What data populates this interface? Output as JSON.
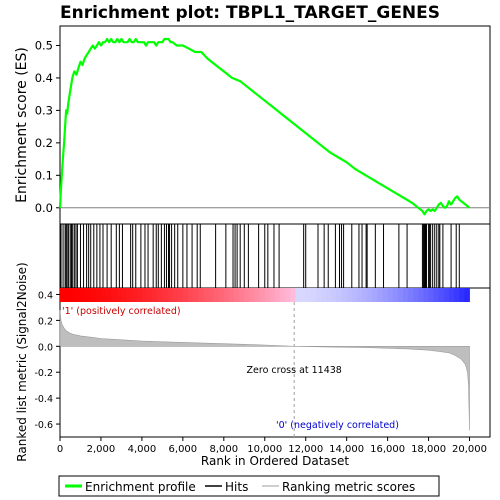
{
  "chart_data": {
    "type": "line",
    "title": "Enrichment plot: TBPL1_TARGET_GENES",
    "xlabel": "Rank in Ordered Dataset",
    "ylabel_top": "Enrichment score (ES)",
    "ylabel_bottom": "Ranked list metric (Signal2Noise)",
    "xlim": [
      0,
      21000
    ],
    "x_ticks": [
      0,
      2000,
      4000,
      6000,
      8000,
      10000,
      12000,
      14000,
      16000,
      18000,
      20000
    ],
    "x_tick_labels": [
      "0",
      "2,000",
      "4,000",
      "6,000",
      "8,000",
      "10,000",
      "12,000",
      "14,000",
      "16,000",
      "18,000",
      "20,000"
    ],
    "es_panel": {
      "ylim": [
        -0.05,
        0.56
      ],
      "y_ticks": [
        0.0,
        0.1,
        0.2,
        0.3,
        0.4,
        0.5
      ],
      "y_tick_labels": [
        "0.0",
        "0.1",
        "0.2",
        "0.3",
        "0.4",
        "0.5"
      ],
      "series": [
        {
          "name": "Enrichment profile",
          "color": "#00ff00",
          "x": [
            0,
            50,
            100,
            150,
            200,
            250,
            300,
            350,
            400,
            450,
            500,
            550,
            600,
            650,
            700,
            800,
            900,
            1000,
            1100,
            1200,
            1300,
            1400,
            1500,
            1600,
            1700,
            1800,
            1900,
            2000,
            2100,
            2200,
            2300,
            2400,
            2500,
            2600,
            2700,
            2800,
            2900,
            3000,
            3100,
            3200,
            3300,
            3400,
            3500,
            3600,
            3700,
            3800,
            3900,
            4000,
            4100,
            4200,
            4300,
            4400,
            4500,
            4600,
            4700,
            4800,
            4900,
            5000,
            5100,
            5200,
            5300,
            5400,
            5500,
            5700,
            6000,
            6300,
            6600,
            6900,
            7200,
            7600,
            8000,
            8400,
            8800,
            9200,
            9600,
            10000,
            10400,
            10800,
            11200,
            11600,
            12000,
            12400,
            12800,
            13200,
            13600,
            14000,
            14400,
            14800,
            15200,
            15600,
            16000,
            16400,
            16800,
            17200,
            17500,
            17700,
            17800,
            17900,
            18000,
            18100,
            18200,
            18300,
            18400,
            18500,
            18600,
            18700,
            18800,
            18900,
            19000,
            19100,
            19200,
            19300,
            19400,
            19500,
            19600,
            19700,
            19800,
            19900,
            20000
          ],
          "y": [
            0.0,
            0.06,
            0.11,
            0.16,
            0.2,
            0.25,
            0.3,
            0.29,
            0.32,
            0.34,
            0.36,
            0.38,
            0.4,
            0.41,
            0.42,
            0.41,
            0.43,
            0.45,
            0.44,
            0.46,
            0.47,
            0.48,
            0.49,
            0.5,
            0.49,
            0.5,
            0.51,
            0.5,
            0.51,
            0.51,
            0.52,
            0.51,
            0.52,
            0.51,
            0.51,
            0.52,
            0.51,
            0.52,
            0.51,
            0.51,
            0.51,
            0.52,
            0.51,
            0.51,
            0.52,
            0.51,
            0.51,
            0.51,
            0.51,
            0.5,
            0.51,
            0.51,
            0.51,
            0.51,
            0.5,
            0.51,
            0.51,
            0.51,
            0.52,
            0.52,
            0.52,
            0.51,
            0.51,
            0.5,
            0.5,
            0.49,
            0.48,
            0.48,
            0.46,
            0.44,
            0.42,
            0.4,
            0.39,
            0.37,
            0.35,
            0.33,
            0.31,
            0.29,
            0.27,
            0.25,
            0.23,
            0.21,
            0.19,
            0.17,
            0.155,
            0.14,
            0.12,
            0.105,
            0.09,
            0.075,
            0.06,
            0.045,
            0.03,
            0.015,
            0.0,
            -0.01,
            -0.02,
            -0.01,
            -0.005,
            -0.01,
            -0.005,
            -0.01,
            0.0,
            0.01,
            0.015,
            0.005,
            0.0,
            0.005,
            0.02,
            0.01,
            0.02,
            0.03,
            0.035,
            0.025,
            0.02,
            0.015,
            0.01,
            0.005,
            0.0
          ]
        }
      ],
      "hits_label": "Hits",
      "hits": [
        50,
        150,
        250,
        300,
        350,
        420,
        500,
        560,
        620,
        700,
        780,
        850,
        1000,
        1150,
        1300,
        1400,
        1500,
        1650,
        1800,
        1950,
        2100,
        2300,
        2500,
        2750,
        2900,
        3050,
        3450,
        3550,
        3700,
        3950,
        4150,
        4300,
        4550,
        4700,
        4800,
        4950,
        5100,
        5200,
        5300,
        5350,
        5450,
        5600,
        5750,
        6000,
        6200,
        6450,
        6700,
        6850,
        7600,
        8100,
        8450,
        8550,
        8650,
        8800,
        9000,
        9200,
        9700,
        10000,
        10150,
        10450,
        10700,
        11900,
        12000,
        12600,
        12900,
        13100,
        13450,
        13650,
        13750,
        13850,
        14250,
        14600,
        14750,
        14950,
        15000,
        15400,
        15800,
        16550,
        16950,
        17700,
        17750,
        17800,
        17850,
        17900,
        18000,
        18050,
        18100,
        18200,
        18300,
        18400,
        18500,
        18550,
        18700,
        19100,
        19350,
        19500
      ]
    },
    "metric_panel": {
      "ylim": [
        -0.7,
        0.45
      ],
      "y_ticks": [
        -0.6,
        -0.4,
        -0.2,
        0.0,
        0.2,
        0.4
      ],
      "y_tick_labels": [
        "-0.6",
        "-0.4",
        "-0.2",
        "0.0",
        "0.2",
        "0.4"
      ],
      "series": [
        {
          "name": "Ranking metric scores",
          "color": "#bebebe",
          "x": [
            0,
            50,
            100,
            200,
            300,
            500,
            700,
            1000,
            1500,
            2000,
            3000,
            4000,
            5000,
            6000,
            8000,
            10000,
            11438,
            13000,
            15000,
            17000,
            18000,
            18500,
            19000,
            19300,
            19600,
            19800,
            19900,
            19950,
            20000
          ],
          "values": [
            0.28,
            0.2,
            0.17,
            0.14,
            0.12,
            0.1,
            0.09,
            0.08,
            0.07,
            0.06,
            0.05,
            0.04,
            0.035,
            0.03,
            0.02,
            0.01,
            0.0,
            -0.005,
            -0.01,
            -0.02,
            -0.03,
            -0.04,
            -0.05,
            -0.07,
            -0.1,
            -0.14,
            -0.2,
            -0.3,
            -0.65
          ]
        }
      ],
      "zero_cross_x": 11438,
      "zero_cross_label": "Zero cross at 11438",
      "pos_label": "'1' (positively correlated)",
      "neg_label": "'0' (negatively correlated)"
    },
    "legend": {
      "placement": "bottom",
      "entries": [
        {
          "label": "Enrichment profile",
          "color": "#00ff00"
        },
        {
          "label": "Hits",
          "color": "#000000"
        },
        {
          "label": "Ranking metric scores",
          "color": "#bebebe"
        }
      ]
    },
    "colors": {
      "profile": "#00ff00",
      "hits": "#000000",
      "metric": "#bebebe",
      "pos_label": "#cc0000",
      "neg_label": "#0000cc",
      "bar_pos_strong": "#ff0000",
      "bar_pos_light": "#ffc0e0",
      "bar_neg_light": "#d8d8ff",
      "bar_neg_strong": "#2020ff"
    }
  }
}
